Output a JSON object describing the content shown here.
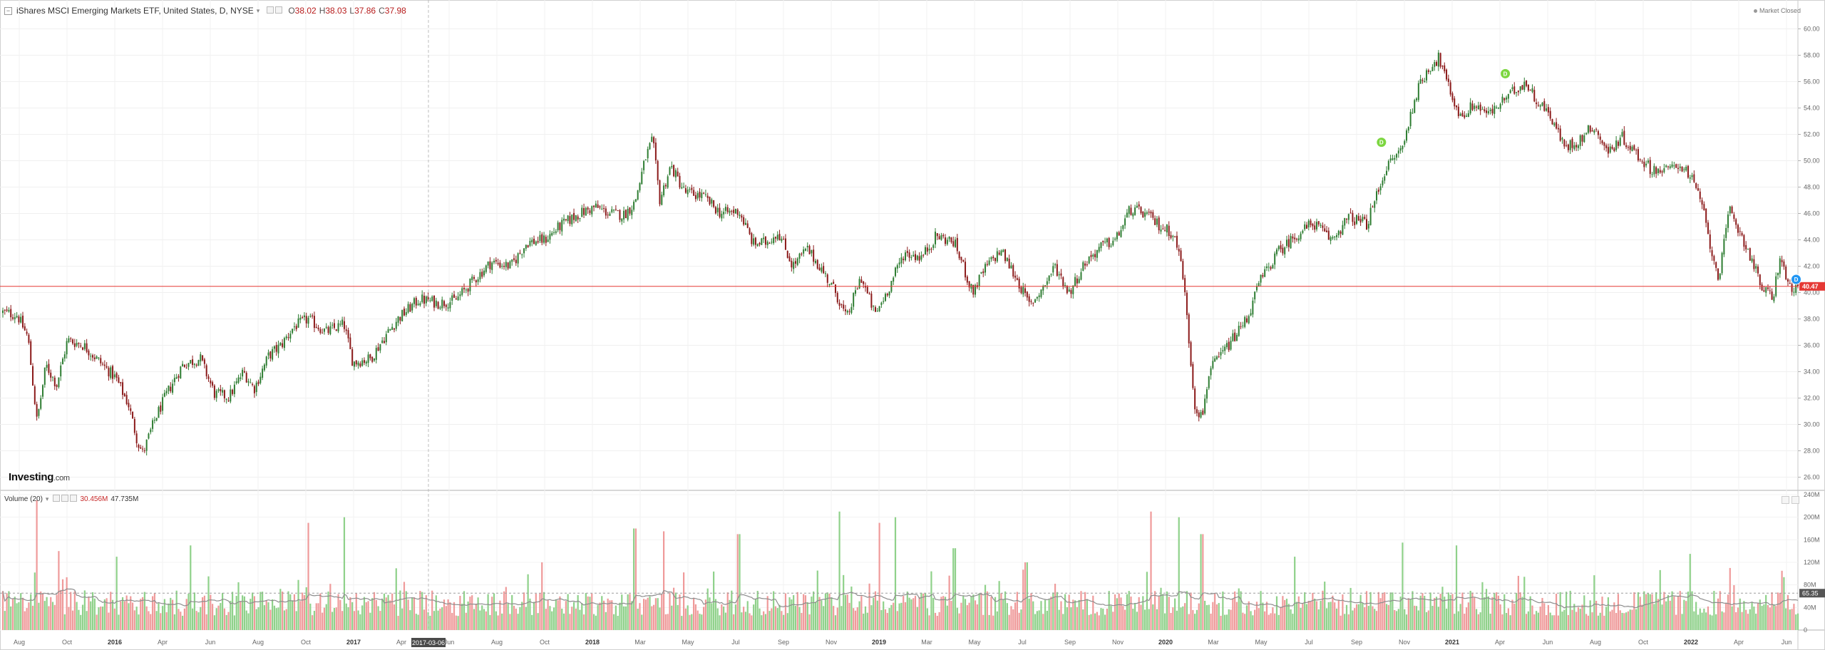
{
  "header": {
    "symbol_text": "iShares MSCI Emerging Markets ETF, United States, D, NYSE",
    "dropdown_glyph": "▾",
    "ohlc": [
      {
        "label": "O",
        "value": "38.02"
      },
      {
        "label": "H",
        "value": "38.03"
      },
      {
        "label": "L",
        "value": "37.86"
      },
      {
        "label": "C",
        "value": "37.98"
      }
    ],
    "market_status": "Market Closed"
  },
  "volume_legend": {
    "label": "Volume (20)",
    "dropdown_glyph": "▾",
    "value1": "30.456M",
    "value2": "47.735M"
  },
  "logo": {
    "main": "Investing",
    "suffix": ".com"
  },
  "crosshair_label": "2017-03-06",
  "colors": {
    "up": "#26a69a",
    "up_candle": "#2e7d32",
    "down_candle": "#8b1a1a",
    "vol_up": "#8fd18a",
    "vol_down": "#ef9a9a",
    "price_line": "#e53935",
    "price_tag": "#e53935",
    "vol_tag": "#555555",
    "marker": "#7cd640",
    "marker_blue": "#2196f3"
  },
  "chart_data": [
    {
      "type": "candlestick",
      "title": "iShares MSCI Emerging Markets ETF, United States, D, NYSE",
      "ylim": [
        25,
        61
      ],
      "y_ticks": [
        "26.00",
        "28.00",
        "30.00",
        "32.00",
        "34.00",
        "36.00",
        "38.00",
        "40.00",
        "42.00",
        "44.00",
        "46.00",
        "48.00",
        "50.00",
        "52.00",
        "54.00",
        "56.00",
        "58.00",
        "60.00"
      ],
      "x_ticks": [
        "Aug",
        "Oct",
        "2016",
        "Apr",
        "Jun",
        "Aug",
        "Oct",
        "2017",
        "Apr",
        "Jun",
        "Aug",
        "Oct",
        "2018",
        "Mar",
        "May",
        "Jul",
        "Sep",
        "Nov",
        "2019",
        "Mar",
        "May",
        "Jul",
        "Sep",
        "Nov",
        "2020",
        "Mar",
        "May",
        "Jul",
        "Sep",
        "Nov",
        "2021",
        "Apr",
        "Jun",
        "Aug",
        "Oct",
        "2022",
        "Apr",
        "Jun"
      ],
      "last_price_tag": "40.47",
      "path": [
        [
          0,
          38.5
        ],
        [
          0.008,
          38.3
        ],
        [
          0.014,
          36.6
        ],
        [
          0.019,
          30.2
        ],
        [
          0.024,
          34.5
        ],
        [
          0.03,
          33.0
        ],
        [
          0.036,
          36.4
        ],
        [
          0.045,
          36.0
        ],
        [
          0.055,
          34.6
        ],
        [
          0.063,
          33.5
        ],
        [
          0.07,
          31.5
        ],
        [
          0.075,
          28.7
        ],
        [
          0.078,
          27.8
        ],
        [
          0.085,
          30.5
        ],
        [
          0.092,
          32.5
        ],
        [
          0.1,
          34.5
        ],
        [
          0.11,
          35.0
        ],
        [
          0.118,
          32.3
        ],
        [
          0.126,
          32.1
        ],
        [
          0.134,
          34.0
        ],
        [
          0.14,
          32.7
        ],
        [
          0.148,
          35.2
        ],
        [
          0.155,
          36.0
        ],
        [
          0.162,
          37.4
        ],
        [
          0.17,
          38.0
        ],
        [
          0.18,
          37.0
        ],
        [
          0.19,
          37.6
        ],
        [
          0.195,
          34.7
        ],
        [
          0.205,
          35.0
        ],
        [
          0.212,
          36.5
        ],
        [
          0.22,
          38.0
        ],
        [
          0.232,
          39.5
        ],
        [
          0.243,
          39.2
        ],
        [
          0.252,
          39.4
        ],
        [
          0.262,
          40.9
        ],
        [
          0.272,
          42.3
        ],
        [
          0.283,
          42.0
        ],
        [
          0.292,
          43.8
        ],
        [
          0.302,
          44.0
        ],
        [
          0.31,
          45.0
        ],
        [
          0.32,
          45.9
        ],
        [
          0.33,
          46.5
        ],
        [
          0.338,
          46.0
        ],
        [
          0.346,
          45.9
        ],
        [
          0.352,
          46.8
        ],
        [
          0.358,
          50.2
        ],
        [
          0.362,
          51.6
        ],
        [
          0.366,
          47.0
        ],
        [
          0.372,
          49.6
        ],
        [
          0.38,
          47.6
        ],
        [
          0.39,
          47.3
        ],
        [
          0.4,
          46.0
        ],
        [
          0.41,
          46.2
        ],
        [
          0.418,
          43.7
        ],
        [
          0.425,
          43.8
        ],
        [
          0.432,
          44.6
        ],
        [
          0.44,
          42.0
        ],
        [
          0.448,
          43.3
        ],
        [
          0.455,
          42.0
        ],
        [
          0.464,
          40.0
        ],
        [
          0.47,
          38.0
        ],
        [
          0.478,
          41.2
        ],
        [
          0.486,
          38.3
        ],
        [
          0.494,
          40.5
        ],
        [
          0.502,
          43.0
        ],
        [
          0.512,
          42.7
        ],
        [
          0.52,
          44.3
        ],
        [
          0.53,
          43.8
        ],
        [
          0.535,
          42.0
        ],
        [
          0.54,
          40.0
        ],
        [
          0.548,
          42.0
        ],
        [
          0.556,
          43.2
        ],
        [
          0.565,
          41.0
        ],
        [
          0.572,
          39.0
        ],
        [
          0.58,
          40.5
        ],
        [
          0.586,
          42.0
        ],
        [
          0.594,
          40.0
        ],
        [
          0.603,
          42.3
        ],
        [
          0.612,
          43.5
        ],
        [
          0.62,
          44.0
        ],
        [
          0.628,
          46.3
        ],
        [
          0.636,
          46.0
        ],
        [
          0.645,
          45.0
        ],
        [
          0.652,
          44.5
        ],
        [
          0.657,
          42.0
        ],
        [
          0.661,
          36.0
        ],
        [
          0.664,
          31.5
        ],
        [
          0.668,
          30.5
        ],
        [
          0.672,
          34.0
        ],
        [
          0.68,
          35.5
        ],
        [
          0.688,
          37.0
        ],
        [
          0.694,
          38.3
        ],
        [
          0.7,
          40.8
        ],
        [
          0.71,
          43.0
        ],
        [
          0.72,
          44.3
        ],
        [
          0.73,
          45.3
        ],
        [
          0.74,
          44.0
        ],
        [
          0.75,
          45.7
        ],
        [
          0.76,
          45.2
        ],
        [
          0.77,
          49.3
        ],
        [
          0.78,
          51.1
        ],
        [
          0.787,
          55.0
        ],
        [
          0.794,
          57.0
        ],
        [
          0.8,
          57.8
        ],
        [
          0.806,
          55.3
        ],
        [
          0.812,
          53.3
        ],
        [
          0.82,
          54.3
        ],
        [
          0.828,
          53.5
        ],
        [
          0.834,
          54.3
        ],
        [
          0.842,
          55.3
        ],
        [
          0.848,
          56.0
        ],
        [
          0.855,
          54.5
        ],
        [
          0.862,
          53.5
        ],
        [
          0.87,
          51.0
        ],
        [
          0.878,
          51.5
        ],
        [
          0.886,
          52.7
        ],
        [
          0.894,
          50.6
        ],
        [
          0.902,
          51.8
        ],
        [
          0.91,
          50.5
        ],
        [
          0.918,
          49.4
        ],
        [
          0.926,
          49.2
        ],
        [
          0.934,
          49.8
        ],
        [
          0.94,
          48.8
        ],
        [
          0.946,
          47.0
        ],
        [
          0.952,
          43.0
        ],
        [
          0.956,
          41.2
        ],
        [
          0.962,
          46.3
        ],
        [
          0.968,
          44.5
        ],
        [
          0.974,
          42.6
        ],
        [
          0.98,
          40.3
        ],
        [
          0.986,
          39.6
        ],
        [
          0.99,
          42.7
        ],
        [
          0.995,
          40.4
        ],
        [
          1.0,
          40.47
        ]
      ],
      "markers": [
        {
          "x_frac": 0.768,
          "price": 51.4,
          "label": "D",
          "color": "green"
        },
        {
          "x_frac": 0.837,
          "price": 56.6,
          "label": "D",
          "color": "green"
        },
        {
          "x_frac": 0.999,
          "price": 41.0,
          "label": "D",
          "color": "blue"
        }
      ]
    },
    {
      "type": "bar",
      "title": "Volume (20)",
      "y_ticks": [
        "0",
        "40M",
        "80M",
        "120M",
        "160M",
        "200M",
        "240M"
      ],
      "ylim": [
        0,
        240
      ],
      "unit": "M",
      "last_volume_tag": "65.35",
      "spikes": [
        [
          0.019,
          230
        ],
        [
          0.031,
          140
        ],
        [
          0.063,
          130
        ],
        [
          0.105,
          150
        ],
        [
          0.17,
          190
        ],
        [
          0.19,
          200
        ],
        [
          0.3,
          120
        ],
        [
          0.352,
          180
        ],
        [
          0.368,
          175
        ],
        [
          0.41,
          170
        ],
        [
          0.466,
          210
        ],
        [
          0.488,
          190
        ],
        [
          0.497,
          200
        ],
        [
          0.53,
          145
        ],
        [
          0.57,
          120
        ],
        [
          0.64,
          210
        ],
        [
          0.655,
          200
        ],
        [
          0.668,
          170
        ],
        [
          0.72,
          130
        ],
        [
          0.78,
          155
        ],
        [
          0.81,
          150
        ],
        [
          0.94,
          135
        ],
        [
          0.962,
          110
        ]
      ]
    }
  ]
}
